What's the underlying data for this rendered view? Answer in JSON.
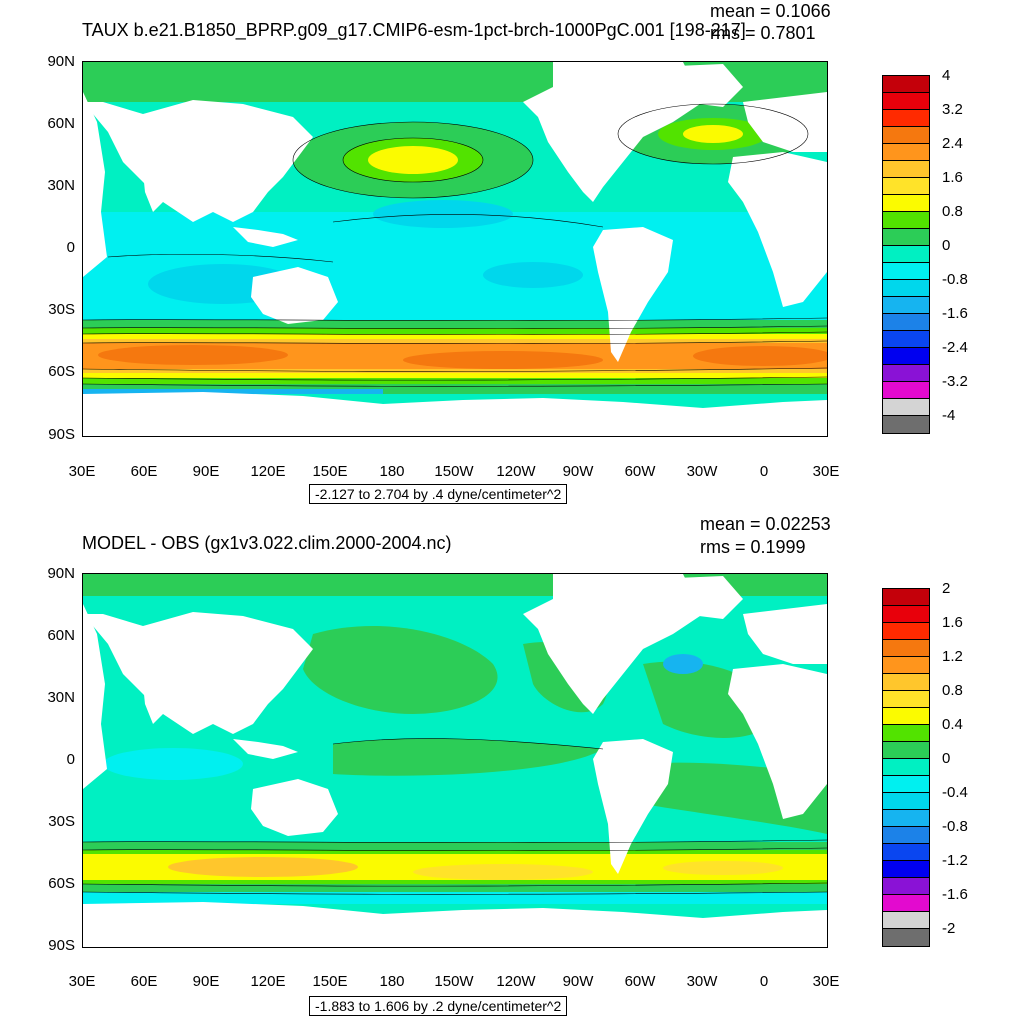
{
  "panels": [
    {
      "title": "TAUX b.e21.B1850_BPRP.g09_g17.CMIP6-esm-1pct-brch-1000PgC.001 [198-217]",
      "mean_text": "mean = 0.1066",
      "rms_text": "rms = 0.7801",
      "lat_ticks": [
        "90N",
        "60N",
        "30N",
        "0",
        "30S",
        "60S",
        "90S"
      ],
      "lon_ticks": [
        "30E",
        "60E",
        "90E",
        "120E",
        "150E",
        "180",
        "150W",
        "120W",
        "90W",
        "60W",
        "30W",
        "0",
        "30E"
      ],
      "range_text": "-2.127 to 2.704 by .4 dyne/centimeter^2",
      "colorbar": {
        "labels": [
          "4",
          "3.2",
          "2.4",
          "1.6",
          "0.8",
          "0",
          "-0.8",
          "-1.6",
          "-2.4",
          "-3.2",
          "-4"
        ],
        "colors": [
          "#c4000a",
          "#e8000b",
          "#ff2a00",
          "#f5780f",
          "#ff951c",
          "#ffc62c",
          "#ffe329",
          "#fbfb00",
          "#52e300",
          "#2ccd57",
          "#00f0c2",
          "#00f0f0",
          "#00d7ec",
          "#16b4f0",
          "#1c82e8",
          "#0a46f0",
          "#0000f0",
          "#8a12d6",
          "#e30acf",
          "#d4d4d4",
          "#6e6e6e"
        ]
      }
    },
    {
      "title": "MODEL - OBS (gx1v3.022.clim.2000-2004.nc)",
      "mean_text": "mean = 0.02253",
      "rms_text": "rms = 0.1999",
      "lat_ticks": [
        "90N",
        "60N",
        "30N",
        "0",
        "30S",
        "60S",
        "90S"
      ],
      "lon_ticks": [
        "30E",
        "60E",
        "90E",
        "120E",
        "150E",
        "180",
        "150W",
        "120W",
        "90W",
        "60W",
        "30W",
        "0",
        "30E"
      ],
      "range_text": "-1.883 to 1.606 by .2 dyne/centimeter^2",
      "colorbar": {
        "labels": [
          "2",
          "1.6",
          "1.2",
          "0.8",
          "0.4",
          "0",
          "-0.4",
          "-0.8",
          "-1.2",
          "-1.6",
          "-2"
        ],
        "colors": [
          "#c4000a",
          "#e8000b",
          "#ff2a00",
          "#f5780f",
          "#ff951c",
          "#ffc62c",
          "#ffe329",
          "#fbfb00",
          "#52e300",
          "#2ccd57",
          "#00f0c2",
          "#00f0f0",
          "#00d7ec",
          "#16b4f0",
          "#1c82e8",
          "#0a46f0",
          "#0000f0",
          "#8a12d6",
          "#e30acf",
          "#d4d4d4",
          "#6e6e6e"
        ]
      }
    }
  ]
}
